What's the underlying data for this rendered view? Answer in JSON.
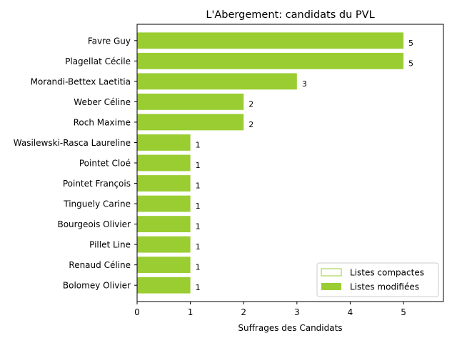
{
  "chart_data": {
    "type": "bar",
    "orientation": "horizontal",
    "title": "L'Abergement: candidats du PVL",
    "xlabel": "Suffrages des Candidats",
    "ylabel": "",
    "xlim": [
      0,
      5.75
    ],
    "xticks": [
      0,
      1,
      2,
      3,
      4,
      5
    ],
    "grid": false,
    "legend_position": "lower-right",
    "categories": [
      "Favre Guy",
      "Plagellat Cécile",
      "Morandi-Bettex Laetitia",
      "Weber Céline",
      "Roch Maxime",
      "Wasilewski-Rasca Laureline",
      "Pointet Cloé",
      "Pointet François",
      "Tinguely Carine",
      "Bourgeois Olivier",
      "Pillet Line",
      "Renaud Céline",
      "Bolomey Olivier"
    ],
    "series": [
      {
        "name": "Listes compactes",
        "color": "#9acd32",
        "style": "outline",
        "values": [
          0,
          0,
          0,
          0,
          0,
          0,
          0,
          0,
          0,
          0,
          0,
          0,
          0
        ]
      },
      {
        "name": "Listes modifiées",
        "color": "#9acd32",
        "style": "filled",
        "values": [
          5,
          5,
          3,
          2,
          2,
          1,
          1,
          1,
          1,
          1,
          1,
          1,
          1
        ]
      }
    ],
    "data_labels": [
      "5",
      "5",
      "3",
      "2",
      "2",
      "1",
      "1",
      "1",
      "1",
      "1",
      "1",
      "1",
      "1"
    ]
  }
}
